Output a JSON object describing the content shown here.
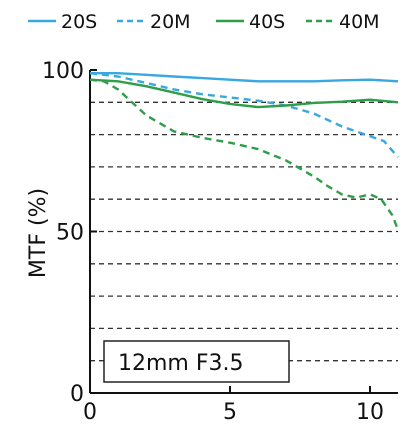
{
  "chart_data": {
    "type": "line",
    "xlabel": "",
    "ylabel": "MTF (%)",
    "xlim": [
      0,
      11
    ],
    "ylim": [
      0,
      100
    ],
    "xticks": [
      0,
      5,
      10
    ],
    "xtick_labels": [
      "0",
      "5",
      "10"
    ],
    "yticks": [
      0,
      50,
      100
    ],
    "ytick_labels": [
      "0",
      "50",
      "100"
    ],
    "grid": "horizontal dashed at every 10%",
    "legend_position": "top",
    "annotation": "12mm F3.5",
    "series": [
      {
        "name": "20S",
        "color": "#3aa8e0",
        "style": "solid",
        "x": [
          0,
          1,
          2,
          3,
          4,
          5,
          6,
          7,
          8,
          9,
          10,
          11
        ],
        "y": [
          99,
          99,
          98.5,
          98,
          97.5,
          97,
          96.5,
          96.5,
          96.5,
          96.8,
          97,
          96.5
        ]
      },
      {
        "name": "20M",
        "color": "#3aa8e0",
        "style": "dashed",
        "x": [
          0,
          1,
          2,
          3,
          4,
          5,
          6,
          7,
          8,
          9,
          10,
          10.5,
          11
        ],
        "y": [
          99,
          98,
          96,
          94,
          92.5,
          91.5,
          90.5,
          89,
          86.5,
          82.5,
          79.5,
          78,
          73
        ]
      },
      {
        "name": "40S",
        "color": "#2e9e48",
        "style": "solid",
        "x": [
          0,
          1,
          2,
          3,
          4,
          5,
          6,
          7,
          8,
          9,
          10,
          11
        ],
        "y": [
          97,
          96.5,
          95,
          93,
          91,
          89.5,
          88.5,
          89,
          89.8,
          90.2,
          90.8,
          90
        ]
      },
      {
        "name": "40M",
        "color": "#2e9e48",
        "style": "dashed",
        "x": [
          0,
          0.5,
          1,
          1.5,
          2,
          3,
          4,
          5,
          6,
          7,
          8,
          8.5,
          9,
          9.5,
          10,
          10.4,
          10.8,
          11
        ],
        "y": [
          97,
          96.5,
          94,
          90,
          86,
          81,
          79,
          77.5,
          75.5,
          72,
          67,
          64,
          61.5,
          60.5,
          61.5,
          60,
          55,
          50.5
        ]
      }
    ]
  }
}
